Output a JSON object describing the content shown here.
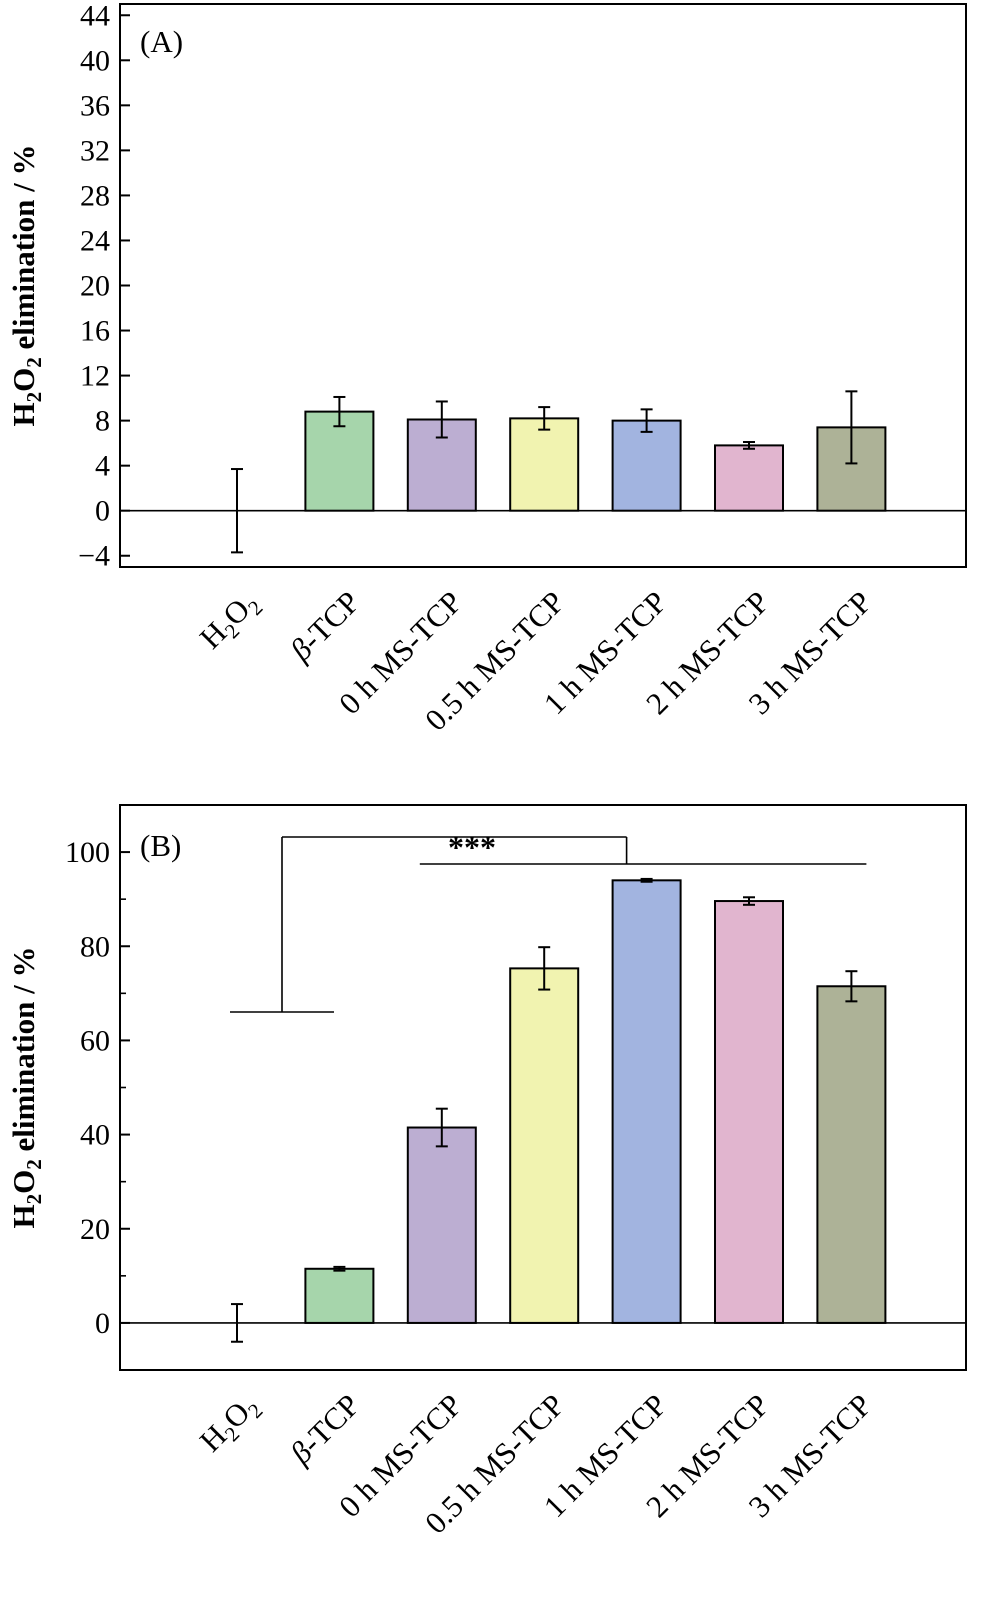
{
  "chart_data": [
    {
      "type": "bar",
      "panel_label": "(A)",
      "ylabel_main": "H",
      "ylabel_sub1": "2",
      "ylabel_mid": "O",
      "ylabel_sub2": "2",
      "ylabel_rest": " elimination / %",
      "ylim": [
        -5,
        45
      ],
      "yticks": [
        -4,
        0,
        4,
        8,
        12,
        16,
        20,
        24,
        28,
        32,
        36,
        40,
        44
      ],
      "ytick_labels": [
        "−4",
        "0",
        "4",
        "8",
        "12",
        "16",
        "20",
        "24",
        "28",
        "32",
        "36",
        "40",
        "44"
      ],
      "categories": [
        {
          "prefix": "H",
          "sub1": "2",
          "mid": "O",
          "sub2": "2",
          "rest": ""
        },
        {
          "prefix": "",
          "italic": "β",
          "rest": "-TCP"
        },
        {
          "prefix": "0 h MS-TCP"
        },
        {
          "prefix": "0.5 h MS-TCP"
        },
        {
          "prefix": "1 h MS-TCP"
        },
        {
          "prefix": "2 h MS-TCP"
        },
        {
          "prefix": "3 h MS-TCP"
        }
      ],
      "values": [
        0,
        8.8,
        8.1,
        8.2,
        8.0,
        5.8,
        7.4
      ],
      "errors": [
        3.7,
        1.3,
        1.6,
        1.0,
        1.0,
        0.3,
        3.2
      ],
      "colors": [
        "#ffffff",
        "#a6d5ab",
        "#bcaed2",
        "#f1f3b0",
        "#a2b4e0",
        "#e1b5cf",
        "#adb297"
      ],
      "grid": false
    },
    {
      "type": "bar",
      "panel_label": "(B)",
      "ylabel_main": "H",
      "ylabel_sub1": "2",
      "ylabel_mid": "O",
      "ylabel_sub2": "2",
      "ylabel_rest": " elimination / %",
      "ylim": [
        -10,
        110
      ],
      "yticks": [
        0,
        20,
        40,
        60,
        80,
        100
      ],
      "ytick_labels": [
        "0",
        "20",
        "40",
        "60",
        "80",
        "100"
      ],
      "minor_yticks": [
        10,
        30,
        50,
        70,
        90
      ],
      "categories": [
        {
          "prefix": "H",
          "sub1": "2",
          "mid": "O",
          "sub2": "2",
          "rest": ""
        },
        {
          "prefix": "",
          "italic": "β",
          "rest": "-TCP"
        },
        {
          "prefix": "0 h MS-TCP"
        },
        {
          "prefix": "0.5 h MS-TCP"
        },
        {
          "prefix": "1 h MS-TCP"
        },
        {
          "prefix": "2 h MS-TCP"
        },
        {
          "prefix": "3 h MS-TCP"
        }
      ],
      "values": [
        0,
        11.5,
        41.5,
        75.3,
        94.0,
        89.6,
        71.5
      ],
      "errors": [
        4.0,
        0.4,
        4.0,
        4.5,
        0.3,
        0.8,
        3.2
      ],
      "colors": [
        "#ffffff",
        "#a6d5ab",
        "#bcaed2",
        "#f1f3b0",
        "#a2b4e0",
        "#e1b5cf",
        "#adb297"
      ],
      "significance": {
        "label": "***"
      },
      "grid": false
    }
  ]
}
